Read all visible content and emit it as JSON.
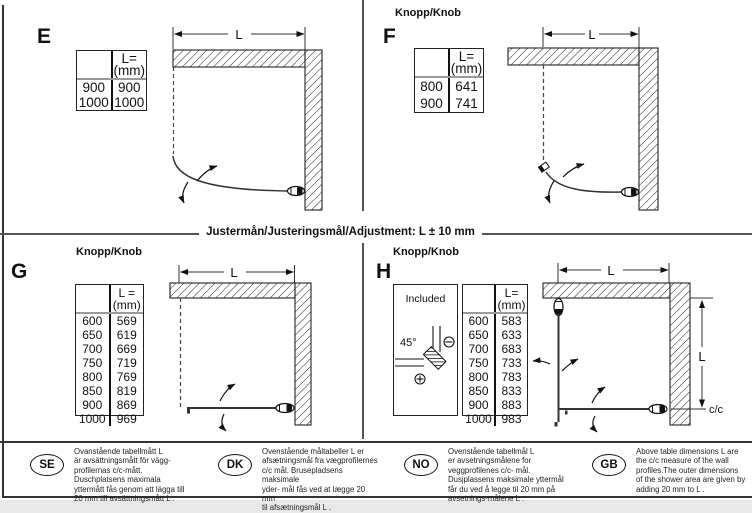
{
  "adjustment_note": "Justermån/Justeringsmål/Adjustment: L ± 10 mm",
  "shared": {
    "knob_label": "Knopp/Knob",
    "dim_label": "L",
    "cc_label": "c/c"
  },
  "panels": {
    "e": {
      "letter": "E",
      "table": {
        "header": "L=\n(mm)",
        "rows": [
          [
            "900",
            "900"
          ],
          [
            "1000",
            "1000"
          ]
        ]
      }
    },
    "f": {
      "letter": "F",
      "table": {
        "header": "L=\n(mm)",
        "rows": [
          [
            "800",
            "641"
          ],
          [
            "900",
            "741"
          ]
        ]
      }
    },
    "g": {
      "letter": "G",
      "table": {
        "header": "L =\n(mm)",
        "rows": [
          [
            "600",
            "569"
          ],
          [
            "650",
            "619"
          ],
          [
            "700",
            "669"
          ],
          [
            "750",
            "719"
          ],
          [
            "800",
            "769"
          ],
          [
            "850",
            "819"
          ],
          [
            "900",
            "869"
          ],
          [
            "1000",
            "969"
          ]
        ]
      }
    },
    "h": {
      "letter": "H",
      "included_label": "Included",
      "angle_label": "45°",
      "table": {
        "header": "L=\n(mm)",
        "rows": [
          [
            "600",
            "583"
          ],
          [
            "650",
            "633"
          ],
          [
            "700",
            "683"
          ],
          [
            "750",
            "733"
          ],
          [
            "800",
            "783"
          ],
          [
            "850",
            "833"
          ],
          [
            "900",
            "883"
          ],
          [
            "1000",
            "983"
          ]
        ]
      }
    }
  },
  "footnotes": [
    {
      "code": "SE",
      "text": "Ovanstående tabellmått L\när avsättningsmått för vägg-\nprofilernas c/c-mått.\nDuschplatsens maximala\nyttermått fås genom att lägga till\n20 mm till avsättningsmått L ."
    },
    {
      "code": "DK",
      "text": "Ovenstående måltabeller L er\nafsætningsmål fra vægprofilernes\nc/c mål. Brusepladsens maksimale\nyder- mål fås ved at lægge 20 mm\ntil afsætningsmål L ."
    },
    {
      "code": "NO",
      "text": "Ovenstående tabellmål L\ner avsetningsmålene for\nveggprofilenes c/c- mål.\nDusjplassens maksimale yttermål\nfår du ved å legge til 20 mm på\navsetnings-målene L ."
    },
    {
      "code": "GB",
      "text": "Above table dimensions L are\nthe c/c measure of the wall\nprofiles.The outer dimensions\nof the shower area are given by\nadding 20 mm to L ."
    }
  ]
}
